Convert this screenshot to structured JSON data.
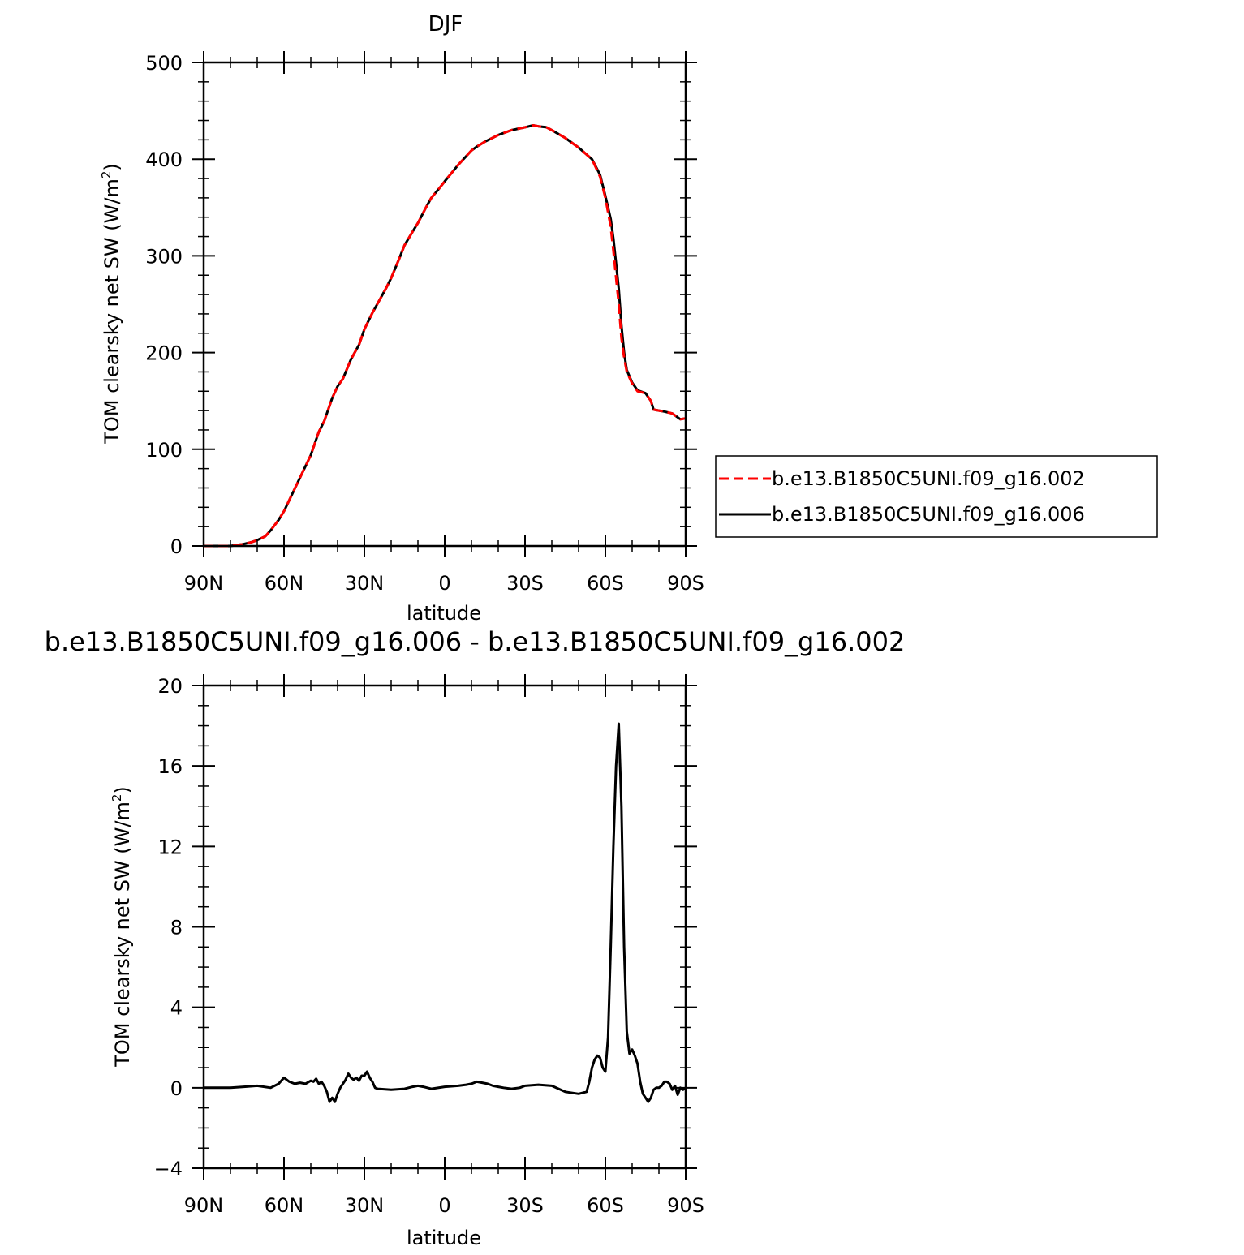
{
  "chart_data": [
    {
      "type": "line",
      "title": "DJF",
      "xlabel": "latitude",
      "ylabel": "TOM clearsky net SW (W/m",
      "ylabel_sup": "2",
      "ylabel_close": ")",
      "xlim": [
        -90,
        90
      ],
      "ylim": [
        0,
        500
      ],
      "xticks": [
        {
          "value": -90,
          "label": "90N"
        },
        {
          "value": -60,
          "label": "60N"
        },
        {
          "value": -30,
          "label": "30N"
        },
        {
          "value": 0,
          "label": "0"
        },
        {
          "value": 30,
          "label": "30S"
        },
        {
          "value": 60,
          "label": "60S"
        },
        {
          "value": 90,
          "label": "90S"
        }
      ],
      "yticks": [
        0,
        100,
        200,
        300,
        400,
        500
      ],
      "legend_position": "right",
      "series": [
        {
          "name": "b.e13.B1850C5UNI.f09_g16.002",
          "color": "#ff0000",
          "dash": "dashed",
          "x": [
            -90,
            -85,
            -80,
            -75,
            -72,
            -70,
            -67,
            -65,
            -62,
            -60,
            -55,
            -50,
            -47,
            -45,
            -42,
            -40,
            -38,
            -35,
            -32,
            -30,
            -27,
            -25,
            -22,
            -20,
            -17,
            -15,
            -12,
            -10,
            -7,
            -5,
            -2,
            0,
            5,
            10,
            12,
            15,
            20,
            25,
            30,
            33,
            35,
            38,
            40,
            45,
            50,
            55,
            58,
            60,
            62,
            63,
            65,
            66,
            67,
            68,
            70,
            72,
            75,
            77,
            78,
            80,
            82,
            85,
            88,
            90
          ],
          "y": [
            0,
            0,
            0,
            2,
            4,
            6,
            10,
            16,
            27,
            36,
            65,
            94,
            118,
            129,
            153,
            165,
            173,
            193,
            208,
            224,
            241,
            251,
            266,
            277,
            297,
            311,
            325,
            334,
            350,
            360,
            370,
            377,
            394,
            409,
            413,
            418,
            425,
            430,
            433,
            435,
            434,
            433,
            430,
            422,
            412,
            400,
            382,
            360,
            330,
            305,
            250,
            215,
            195,
            180,
            168,
            160,
            158,
            150,
            141,
            140,
            139,
            137,
            131,
            132
          ]
        },
        {
          "name": "b.e13.B1850C5UNI.f09_g16.006",
          "color": "#000000",
          "dash": "solid",
          "x": [
            -90,
            -85,
            -80,
            -75,
            -72,
            -70,
            -67,
            -65,
            -62,
            -60,
            -55,
            -50,
            -47,
            -45,
            -42,
            -40,
            -38,
            -35,
            -32,
            -30,
            -27,
            -25,
            -22,
            -20,
            -17,
            -15,
            -12,
            -10,
            -7,
            -5,
            -2,
            0,
            5,
            10,
            12,
            15,
            20,
            25,
            30,
            33,
            35,
            38,
            40,
            45,
            50,
            55,
            58,
            60,
            62,
            63,
            65,
            66,
            67,
            68,
            70,
            72,
            75,
            77,
            78,
            80,
            82,
            85,
            88,
            90
          ],
          "y": [
            0,
            0,
            0,
            2,
            4,
            6,
            10,
            16,
            27,
            36,
            65,
            94,
            118,
            129,
            153,
            165,
            173,
            193,
            208,
            224,
            241,
            251,
            266,
            277,
            297,
            311,
            325,
            334,
            350,
            360,
            370,
            377,
            394,
            409,
            413,
            418,
            425,
            430,
            433,
            435,
            434,
            433,
            430,
            422,
            412,
            400,
            384,
            362,
            338,
            318,
            266,
            228,
            200,
            182,
            169,
            161,
            158,
            150,
            141,
            140,
            139,
            137,
            131,
            132
          ]
        }
      ]
    },
    {
      "type": "line",
      "title": "b.e13.B1850C5UNI.f09_g16.006 - b.e13.B1850C5UNI.f09_g16.002",
      "xlabel": "latitude",
      "ylabel": "TOM clearsky net SW (W/m",
      "ylabel_sup": "2",
      "ylabel_close": ")",
      "xlim": [
        -90,
        90
      ],
      "ylim": [
        -4,
        20
      ],
      "xticks": [
        {
          "value": -90,
          "label": "90N"
        },
        {
          "value": -60,
          "label": "60N"
        },
        {
          "value": -30,
          "label": "30N"
        },
        {
          "value": 0,
          "label": "0"
        },
        {
          "value": 30,
          "label": "30S"
        },
        {
          "value": 60,
          "label": "60S"
        },
        {
          "value": 90,
          "label": "90S"
        }
      ],
      "yticks": [
        -4,
        0,
        4,
        8,
        12,
        16,
        20
      ],
      "series": [
        {
          "color": "#000000",
          "dash": "solid",
          "x": [
            -90,
            -80,
            -75,
            -70,
            -65,
            -62,
            -60,
            -58,
            -56,
            -54,
            -52,
            -50,
            -49,
            -48,
            -47,
            -46,
            -45,
            -44,
            -43,
            -42,
            -41,
            -40,
            -39,
            -38,
            -37,
            -36,
            -35,
            -34,
            -33,
            -32,
            -31,
            -30,
            -29,
            -28,
            -27,
            -26,
            -25,
            -20,
            -15,
            -12,
            -10,
            -8,
            -5,
            0,
            5,
            8,
            10,
            12,
            14,
            16,
            18,
            20,
            22,
            25,
            28,
            30,
            35,
            40,
            45,
            50,
            53,
            54,
            55,
            56,
            57,
            58,
            59,
            60,
            61,
            62,
            63,
            64,
            65,
            66,
            67,
            68,
            69,
            70,
            71,
            72,
            73,
            74,
            75,
            76,
            77,
            78,
            79,
            80,
            81,
            82,
            83,
            84,
            85,
            86,
            87,
            88,
            89,
            90
          ],
          "y": [
            0,
            0,
            0.05,
            0.1,
            0,
            0.2,
            0.5,
            0.3,
            0.2,
            0.25,
            0.2,
            0.35,
            0.3,
            0.45,
            0.2,
            0.3,
            0.1,
            -0.2,
            -0.7,
            -0.5,
            -0.7,
            -0.3,
            0,
            0.2,
            0.4,
            0.7,
            0.5,
            0.4,
            0.5,
            0.35,
            0.6,
            0.6,
            0.8,
            0.5,
            0.3,
            0,
            -0.05,
            -0.1,
            -0.05,
            0.05,
            0.1,
            0.05,
            -0.05,
            0.05,
            0.1,
            0.15,
            0.2,
            0.3,
            0.25,
            0.2,
            0.1,
            0.05,
            0,
            -0.05,
            0,
            0.1,
            0.15,
            0.1,
            -0.2,
            -0.3,
            -0.2,
            0.3,
            1,
            1.4,
            1.6,
            1.5,
            1.0,
            0.8,
            2.5,
            7,
            12,
            16,
            18.1,
            14,
            7,
            2.8,
            1.7,
            1.9,
            1.6,
            1.2,
            0.3,
            -0.3,
            -0.5,
            -0.7,
            -0.5,
            -0.1,
            0,
            0,
            0.1,
            0.3,
            0.3,
            0.2,
            -0.1,
            0.1,
            -0.35,
            0,
            -0.1,
            0
          ]
        }
      ]
    }
  ]
}
